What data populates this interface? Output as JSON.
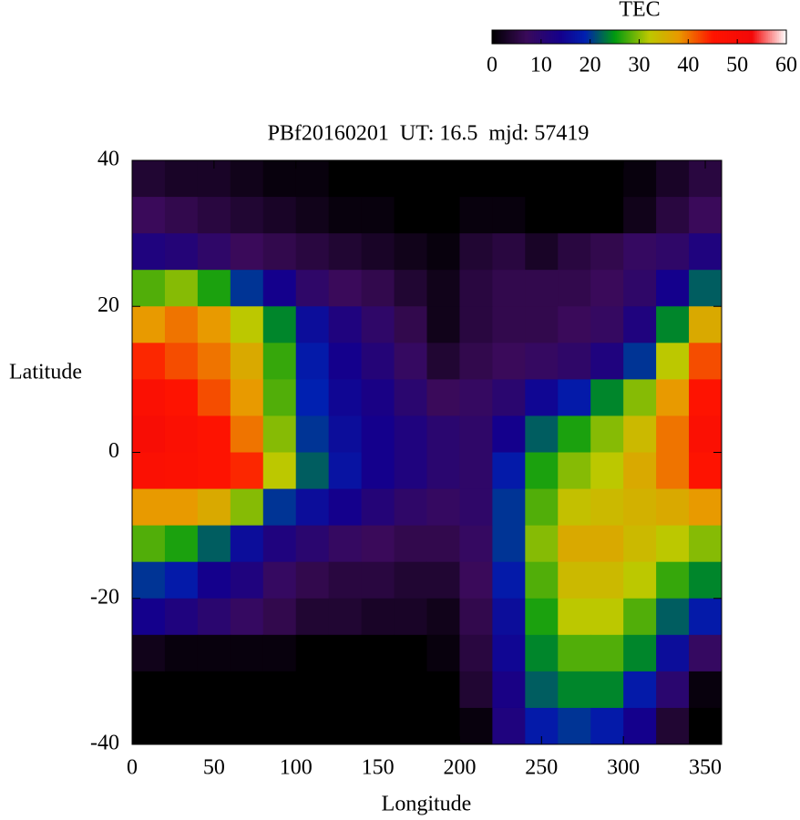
{
  "chart_data": {
    "type": "heatmap",
    "title": "PBf20160201  UT: 16.5  mjd: 57419",
    "x_label": "Longitude",
    "y_label": "Latitude",
    "colorbar_label": "TEC",
    "x": [
      10,
      30,
      50,
      70,
      90,
      110,
      130,
      150,
      170,
      190,
      210,
      230,
      250,
      270,
      290,
      310,
      330,
      350
    ],
    "y": [
      37.5,
      32.5,
      27.5,
      22.5,
      17.5,
      12.5,
      7.5,
      2.5,
      -2.5,
      -7.5,
      -12.5,
      -17.5,
      -22.5,
      -27.5,
      -32.5,
      -37.5
    ],
    "z": [
      [
        4,
        3,
        3,
        2,
        1,
        1,
        0,
        0,
        0,
        0,
        0,
        0,
        0,
        0,
        0,
        1,
        3,
        5
      ],
      [
        7,
        6,
        5,
        4,
        3,
        2,
        1,
        1,
        0,
        0,
        1,
        1,
        0,
        0,
        0,
        2,
        5,
        7
      ],
      [
        12,
        11,
        9,
        7,
        6,
        5,
        4,
        3,
        2,
        1,
        4,
        5,
        3,
        5,
        6,
        8,
        9,
        12
      ],
      [
        28,
        30,
        26,
        20,
        14,
        9,
        7,
        6,
        4,
        2,
        5,
        6,
        6,
        6,
        7,
        9,
        14,
        22
      ],
      [
        38,
        40,
        38,
        32,
        24,
        16,
        12,
        9,
        6,
        2,
        5,
        6,
        6,
        7,
        8,
        12,
        24,
        36
      ],
      [
        44,
        42,
        40,
        36,
        27,
        18,
        14,
        11,
        8,
        4,
        6,
        7,
        8,
        9,
        12,
        20,
        32,
        42
      ],
      [
        48,
        46,
        42,
        38,
        28,
        19,
        15,
        13,
        10,
        7,
        8,
        10,
        15,
        18,
        24,
        30,
        38,
        46
      ],
      [
        50,
        48,
        46,
        40,
        30,
        20,
        16,
        14,
        12,
        10,
        9,
        14,
        22,
        26,
        30,
        34,
        40,
        48
      ],
      [
        48,
        47,
        46,
        44,
        32,
        22,
        17,
        14,
        12,
        10,
        9,
        18,
        26,
        30,
        32,
        36,
        40,
        46
      ],
      [
        38,
        38,
        36,
        30,
        20,
        16,
        14,
        11,
        9,
        8,
        9,
        20,
        28,
        33,
        34,
        35,
        36,
        38
      ],
      [
        28,
        26,
        22,
        16,
        12,
        10,
        8,
        7,
        6,
        6,
        8,
        20,
        30,
        36,
        36,
        34,
        32,
        30
      ],
      [
        20,
        18,
        14,
        12,
        8,
        6,
        5,
        5,
        4,
        4,
        7,
        18,
        28,
        34,
        34,
        32,
        27,
        24
      ],
      [
        14,
        12,
        10,
        8,
        6,
        4,
        4,
        3,
        3,
        2,
        6,
        16,
        26,
        32,
        32,
        28,
        22,
        18
      ],
      [
        2,
        1,
        1,
        1,
        1,
        0,
        0,
        0,
        0,
        1,
        5,
        15,
        24,
        28,
        28,
        24,
        16,
        8
      ],
      [
        0,
        0,
        0,
        0,
        0,
        0,
        0,
        0,
        0,
        0,
        4,
        13,
        22,
        24,
        24,
        18,
        10,
        1
      ],
      [
        0,
        0,
        0,
        0,
        0,
        0,
        0,
        0,
        0,
        0,
        1,
        12,
        18,
        20,
        18,
        14,
        4,
        0
      ]
    ],
    "xlim": [
      0,
      360
    ],
    "ylim": [
      -40,
      40
    ],
    "xticks": [
      0,
      50,
      100,
      150,
      200,
      250,
      300,
      350
    ],
    "yticks": [
      40,
      20,
      0,
      -20,
      -40
    ],
    "clim": [
      0,
      60
    ],
    "cticks": [
      0,
      10,
      20,
      30,
      40,
      50,
      60
    ],
    "colorscale": [
      [
        0,
        "#000000"
      ],
      [
        7,
        "#3a0a5a"
      ],
      [
        14,
        "#14008c"
      ],
      [
        19,
        "#0020b0"
      ],
      [
        25,
        "#009a10"
      ],
      [
        32,
        "#bcc800"
      ],
      [
        38,
        "#e89a00"
      ],
      [
        45,
        "#ff1400"
      ],
      [
        53,
        "#f40808"
      ],
      [
        60,
        "#ffffff"
      ]
    ]
  }
}
